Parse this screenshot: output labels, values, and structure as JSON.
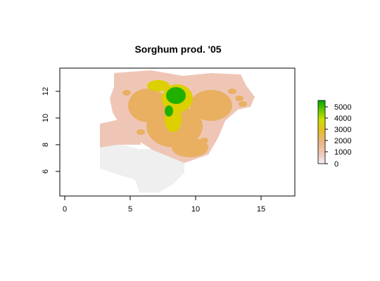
{
  "title": "Sorghum prod. '05",
  "x_ticks": [
    "0",
    "5",
    "10",
    "15"
  ],
  "y_ticks": [
    "6",
    "8",
    "10",
    "12"
  ],
  "legend": {
    "ticks": [
      "0",
      "1000",
      "2000",
      "3000",
      "4000",
      "5000"
    ],
    "colors": [
      "#f2f2f2",
      "#f0c9c0",
      "#ebb47a",
      "#e6c020",
      "#c8e000",
      "#5cc800",
      "#00a600"
    ]
  },
  "map": {
    "nodata_color": "#efefef",
    "low_color": "#efc6b6",
    "mid_color": "#e8b060",
    "high_color": "#dcd000",
    "peak_color": "#22b000"
  }
}
